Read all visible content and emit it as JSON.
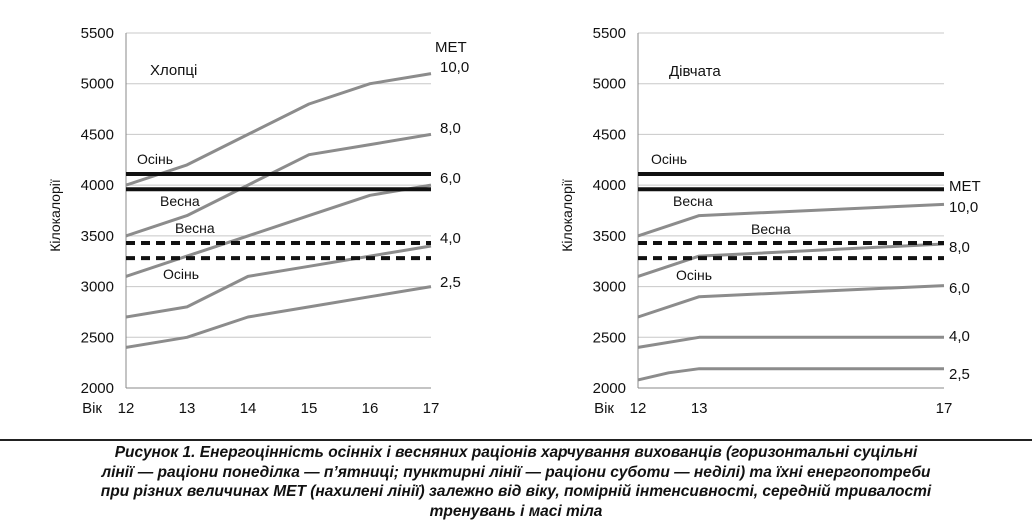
{
  "chart_data": [
    {
      "type": "line",
      "title": "Хлопці",
      "ylabel": "Кілокалорії",
      "xlabel": "Вік",
      "ylim": [
        2000,
        5500
      ],
      "yticks": [
        2000,
        2500,
        3000,
        3500,
        4000,
        4500,
        5000,
        5500
      ],
      "x": [
        12,
        13,
        14,
        15,
        16,
        17
      ],
      "met_header": "МЕТ",
      "grid": true,
      "series": [
        {
          "name": "10,0",
          "x": [
            12,
            13,
            14,
            15,
            16,
            17
          ],
          "values": [
            4000,
            4200,
            4500,
            4800,
            5000,
            5100
          ]
        },
        {
          "name": "8,0",
          "x": [
            12,
            13,
            14,
            15,
            16,
            17
          ],
          "values": [
            3500,
            3700,
            4000,
            4300,
            4400,
            4500
          ]
        },
        {
          "name": "6,0",
          "x": [
            12,
            13,
            14,
            15,
            16,
            17
          ],
          "values": [
            3100,
            3300,
            3500,
            3700,
            3900,
            4000
          ]
        },
        {
          "name": "4,0",
          "x": [
            12,
            13,
            14,
            15,
            16,
            17
          ],
          "values": [
            2700,
            2800,
            3100,
            3200,
            3300,
            3400
          ]
        },
        {
          "name": "2,5",
          "x": [
            12,
            13,
            14,
            15,
            16,
            17
          ],
          "values": [
            2400,
            2500,
            2700,
            2800,
            2900,
            3000
          ]
        }
      ],
      "rations": [
        {
          "label": "Осінь",
          "value": 4110,
          "style": "solid"
        },
        {
          "label": "Весна",
          "value": 3960,
          "style": "solid"
        },
        {
          "label": "Весна",
          "value": 3430,
          "style": "dashed"
        },
        {
          "label": "Осінь",
          "value": 3280,
          "style": "dashed"
        }
      ]
    },
    {
      "type": "line",
      "title": "Дівчата",
      "ylabel": "Кілокалорії",
      "xlabel": "Вік",
      "ylim": [
        2000,
        5500
      ],
      "yticks": [
        2000,
        2500,
        3000,
        3500,
        4000,
        4500,
        5000,
        5500
      ],
      "x": [
        12,
        13,
        17
      ],
      "met_header": "МЕТ",
      "grid": true,
      "series": [
        {
          "name": "10,0",
          "x": [
            12,
            13,
            17
          ],
          "values": [
            3500,
            3700,
            3810
          ]
        },
        {
          "name": "8,0",
          "x": [
            12,
            13,
            17
          ],
          "values": [
            3100,
            3300,
            3420
          ]
        },
        {
          "name": "6,0",
          "x": [
            12,
            13,
            17
          ],
          "values": [
            2700,
            2900,
            3010
          ]
        },
        {
          "name": "4,0",
          "x": [
            12,
            13,
            17
          ],
          "values": [
            2400,
            2500,
            2500
          ]
        },
        {
          "name": "2,5",
          "x": [
            12,
            12.5,
            13,
            17
          ],
          "values": [
            2080,
            2150,
            2190,
            2190
          ]
        }
      ],
      "rations": [
        {
          "label": "Осінь",
          "value": 4110,
          "style": "solid"
        },
        {
          "label": "Весна",
          "value": 3960,
          "style": "solid"
        },
        {
          "label": "Весна",
          "value": 3430,
          "style": "dashed"
        },
        {
          "label": "Осінь",
          "value": 3280,
          "style": "dashed"
        }
      ]
    }
  ],
  "caption": {
    "line1": "Рисунок 1. Енергоцінність осінніх і весняних раціонів харчування вихованців (горизонтальні суцільні",
    "line2": "лінії — раціони понеділка — п’ятниці; пунктирні лінії — раціони суботи — неділі) та їхні енергопотреби",
    "line3": "при різних величинах МЕТ (нахилені лінії) залежно від віку, помірній інтенсивності, середній тривалості",
    "line4": "тренувань і масі тіла"
  },
  "colors": {
    "met_line": "#8c8c8c",
    "ration_line": "#111111",
    "grid": "#c8c8c8",
    "text": "#111111"
  }
}
